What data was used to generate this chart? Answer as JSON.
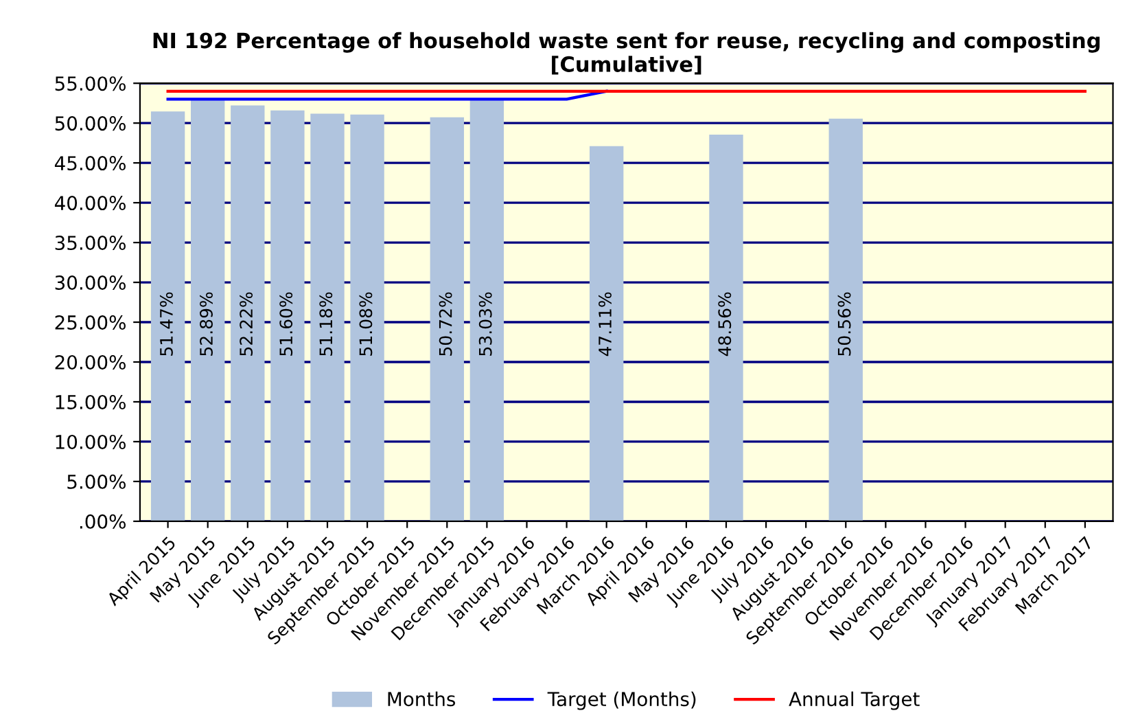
{
  "chart_data": {
    "type": "bar",
    "title": "NI 192 Percentage of household waste sent for reuse, recycling and composting\n[Cumulative]",
    "categories": [
      "April 2015",
      "May 2015",
      "June 2015",
      "July 2015",
      "August 2015",
      "September 2015",
      "October 2015",
      "November 2015",
      "December 2015",
      "January 2016",
      "February 2016",
      "March 2016",
      "April 2016",
      "May 2016",
      "June 2016",
      "July 2016",
      "August 2016",
      "September 2016",
      "October 2016",
      "November 2016",
      "December 2016",
      "January 2017",
      "February 2017",
      "March 2017"
    ],
    "series": [
      {
        "name": "Months",
        "color": "#b0c4de",
        "values": [
          51.47,
          52.89,
          52.22,
          51.6,
          51.18,
          51.08,
          null,
          50.72,
          53.03,
          null,
          null,
          47.11,
          null,
          null,
          48.56,
          null,
          null,
          50.56,
          null,
          null,
          null,
          null,
          null,
          null
        ],
        "value_labels": [
          "51.47%",
          "52.89%",
          "52.22%",
          "51.60%",
          "51.18%",
          "51.08%",
          null,
          "50.72%",
          "53.03%",
          null,
          null,
          "47.11%",
          null,
          null,
          "48.56%",
          null,
          null,
          "50.56%",
          null,
          null,
          null,
          null,
          null,
          null
        ]
      },
      {
        "name": "Target (Months)",
        "type": "line",
        "color": "#0000ff",
        "values": [
          53,
          53,
          53,
          53,
          53,
          53,
          53,
          53,
          53,
          53,
          53,
          54,
          null,
          null,
          null,
          null,
          null,
          null,
          null,
          null,
          null,
          null,
          null,
          null
        ]
      },
      {
        "name": "Annual Target",
        "type": "line",
        "color": "#ff0000",
        "values": [
          54,
          54,
          54,
          54,
          54,
          54,
          54,
          54,
          54,
          54,
          54,
          54,
          54,
          54,
          54,
          54,
          54,
          54,
          54,
          54,
          54,
          54,
          54,
          54
        ]
      }
    ],
    "ylim": [
      0,
      55
    ],
    "yticks": [
      {
        "value": 0,
        "label": ".00%"
      },
      {
        "value": 5,
        "label": "5.00%"
      },
      {
        "value": 10,
        "label": "10.00%"
      },
      {
        "value": 15,
        "label": "15.00%"
      },
      {
        "value": 20,
        "label": "20.00%"
      },
      {
        "value": 25,
        "label": "25.00%"
      },
      {
        "value": 30,
        "label": "30.00%"
      },
      {
        "value": 35,
        "label": "35.00%"
      },
      {
        "value": 40,
        "label": "40.00%"
      },
      {
        "value": 45,
        "label": "45.00%"
      },
      {
        "value": 50,
        "label": "50.00%"
      },
      {
        "value": 55,
        "label": "55.00%"
      }
    ],
    "grid": "y",
    "legend": "bottom",
    "marker": "none",
    "line_style": "solid"
  }
}
